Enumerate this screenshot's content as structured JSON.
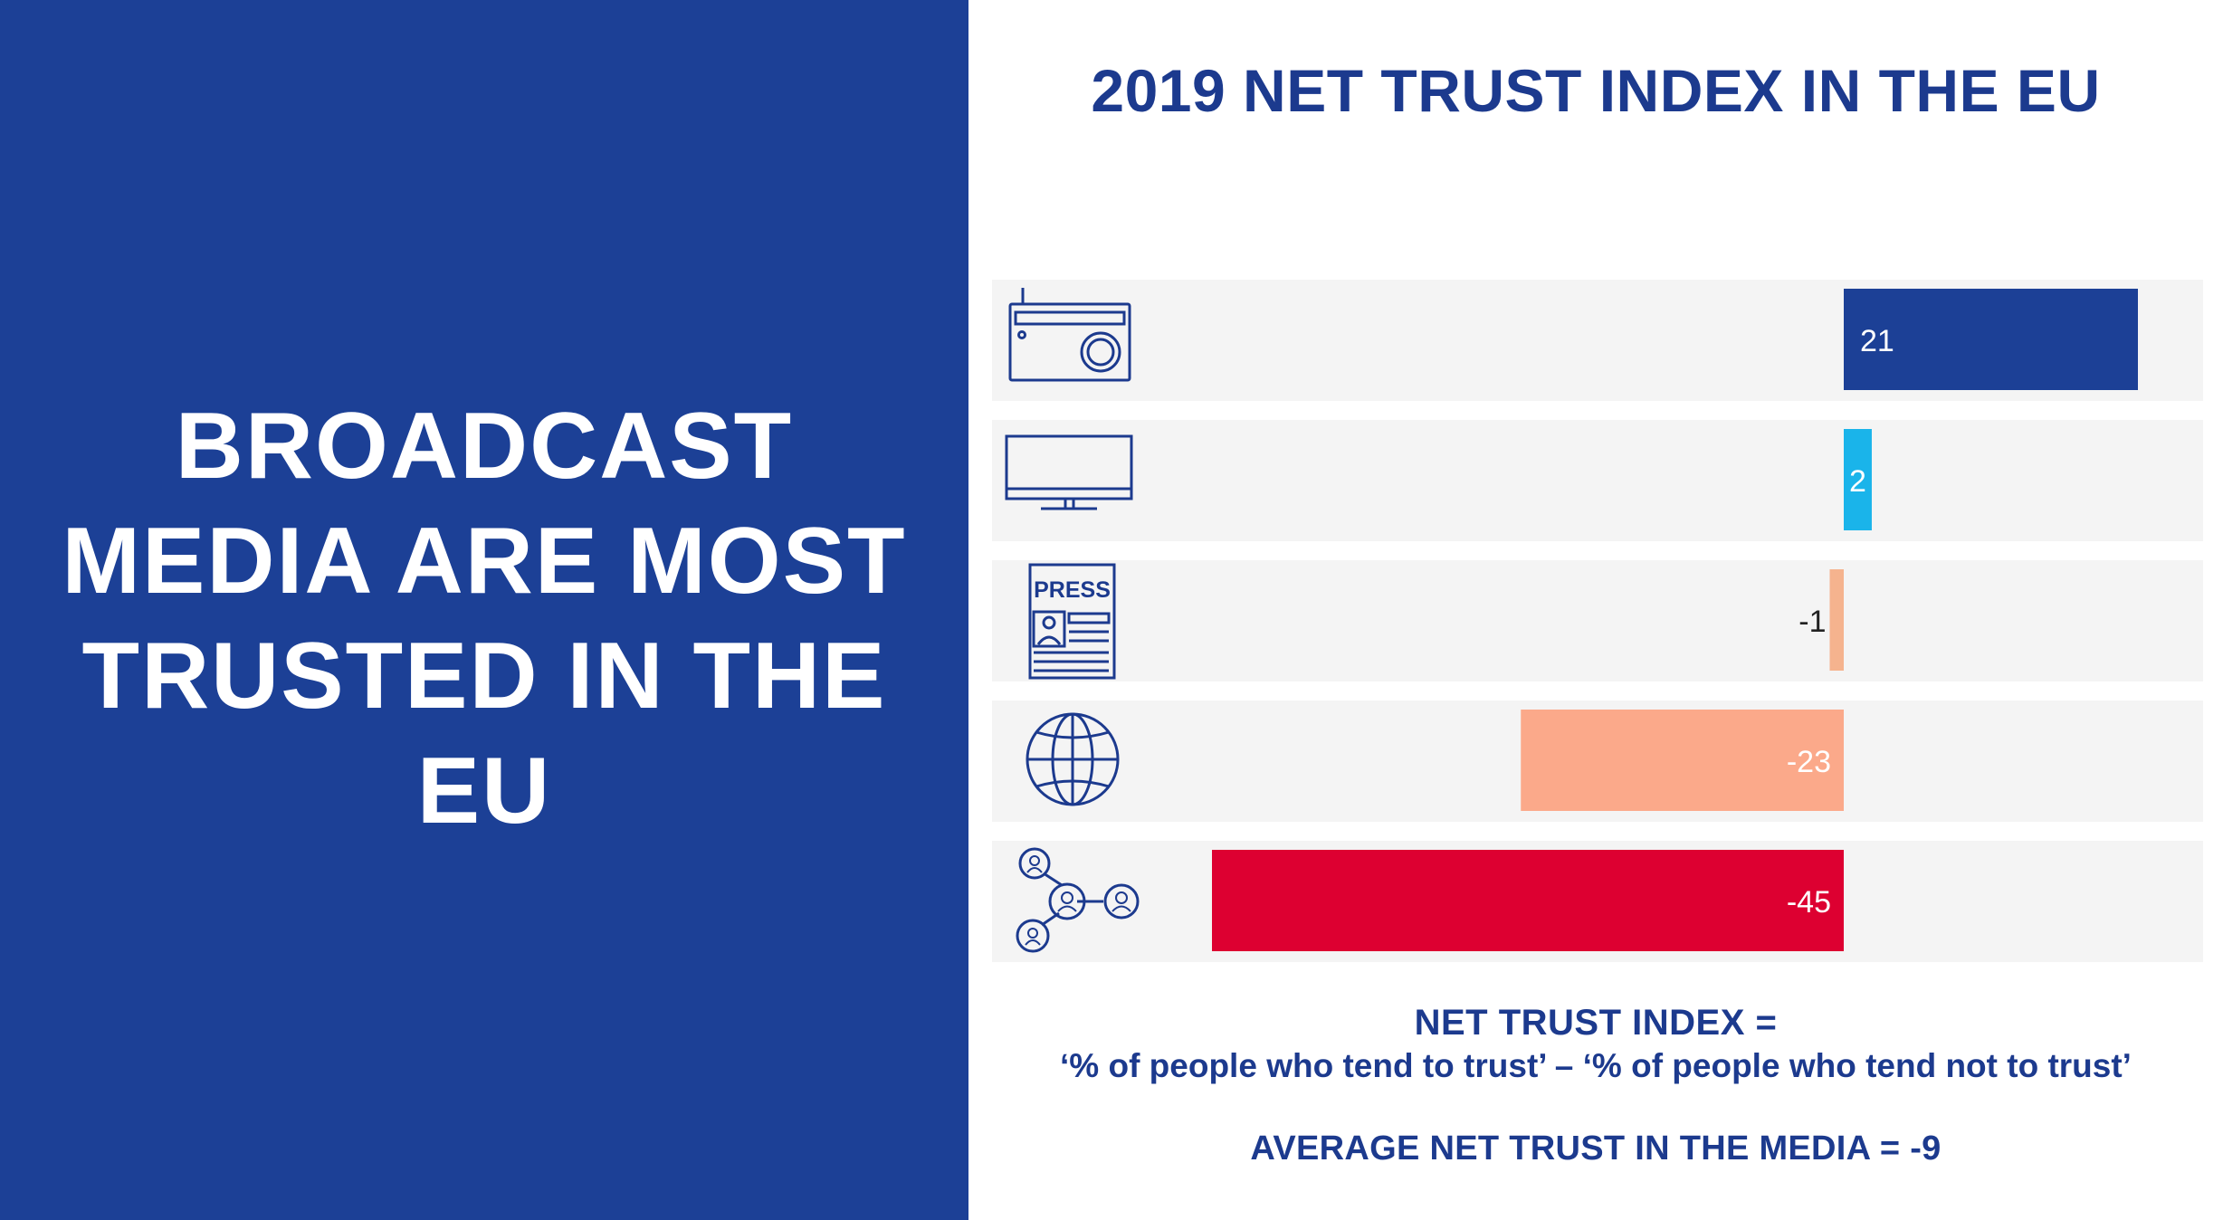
{
  "headline": {
    "lines": [
      "BROADCAST",
      "MEDIA ARE MOST",
      "TRUSTED IN THE",
      "EU"
    ]
  },
  "chart_data": {
    "type": "bar",
    "orientation": "horizontal",
    "title": "2019 NET TRUST INDEX IN THE EU",
    "categories": [
      "radio",
      "television",
      "press",
      "internet",
      "social networks"
    ],
    "values": [
      21,
      2,
      -1,
      -23,
      -45
    ],
    "value_labels": [
      "21",
      "2",
      "-1",
      "-23",
      "-45"
    ],
    "icons": [
      "radio-icon",
      "television-icon",
      "press-icon",
      "globe-icon",
      "social-network-icon"
    ],
    "colors": [
      "#1c4096",
      "#1ab4ea",
      "#f5b38e",
      "#fba98a",
      "#dd0031"
    ],
    "xlim": [
      -45,
      21
    ],
    "grid": false,
    "legend": "none"
  },
  "footer": {
    "definition_title": "NET TRUST INDEX =",
    "definition_formula": "‘% of people who tend to trust’ – ‘% of people who tend not to trust’",
    "average": "AVERAGE NET TRUST IN THE MEDIA = -9"
  },
  "icon_labels": {
    "press": "PRESS"
  },
  "colors": {
    "left_panel": "#1c4096",
    "title_text": "#1c3a8e",
    "row_background": "#f4f4f4",
    "icon_stroke": "#1c3a8e"
  }
}
